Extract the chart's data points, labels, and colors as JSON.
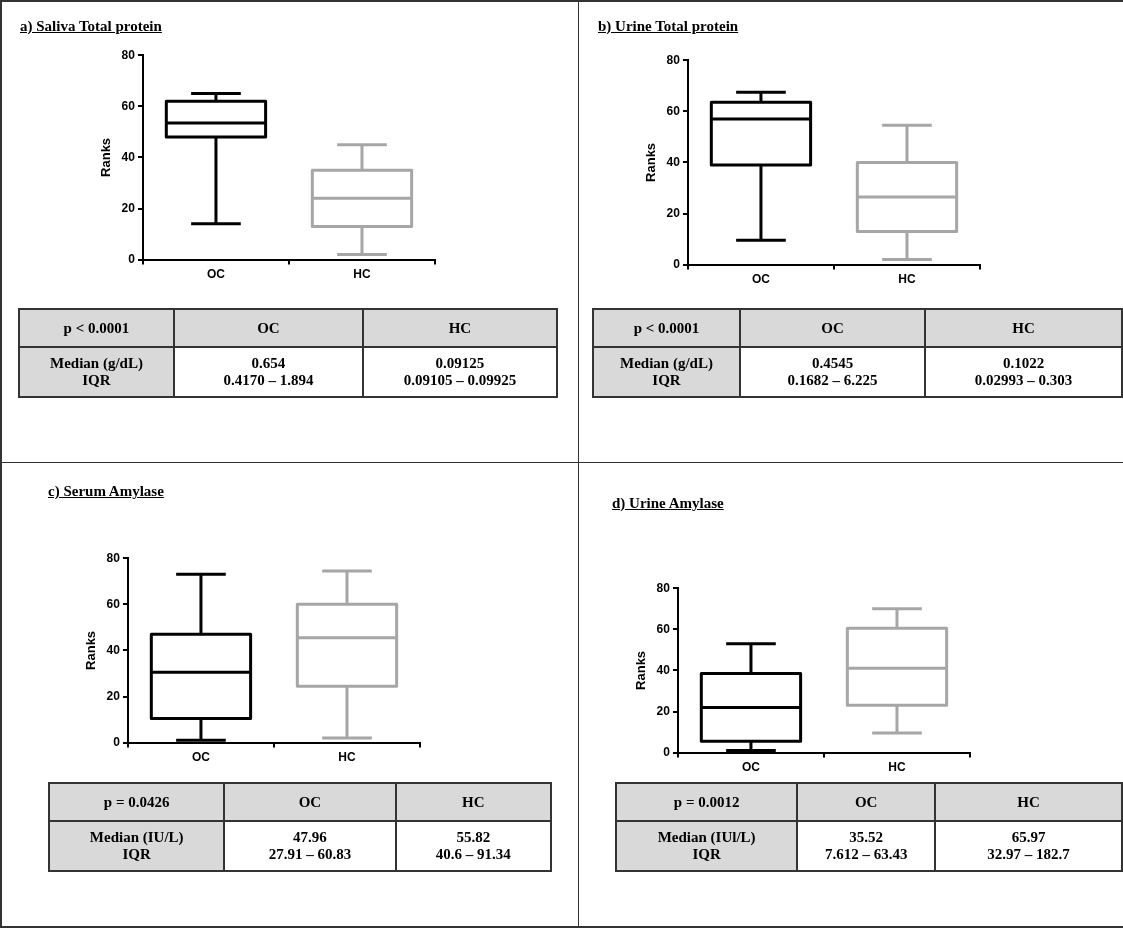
{
  "chart_data": [
    {
      "type": "box",
      "title": "a) Saliva Total protein",
      "categories": [
        "OC",
        "HC"
      ],
      "ylabel": "Ranks",
      "ylim": [
        0,
        80
      ],
      "yticks": [
        0,
        20,
        40,
        60,
        80
      ],
      "colors": [
        "#000000",
        "#a6a6a6"
      ],
      "boxes": [
        {
          "low": 14,
          "q1": 48,
          "median": 53.5,
          "q3": 62,
          "high": 65
        },
        {
          "low": 2,
          "q1": 13,
          "median": 24,
          "q3": 35,
          "high": 45
        }
      ],
      "annotations": [
        "p < 0.0001",
        "Median (g/dL)",
        "IQR",
        "0.654",
        "0.4170 – 1.894",
        "0.09125",
        "0.09105 – 0.09925"
      ]
    },
    {
      "type": "box",
      "title": "b) Urine Total protein",
      "categories": [
        "OC",
        "HC"
      ],
      "ylabel": "Ranks",
      "ylim": [
        0,
        80
      ],
      "yticks": [
        0,
        20,
        40,
        60,
        80
      ],
      "colors": [
        "#000000",
        "#a6a6a6"
      ],
      "boxes": [
        {
          "low": 9.5,
          "q1": 39,
          "median": 57,
          "q3": 63.5,
          "high": 67.5
        },
        {
          "low": 2,
          "q1": 13,
          "median": 26.5,
          "q3": 40,
          "high": 54.5
        }
      ],
      "annotations": [
        "p < 0.0001",
        "Median (g/dL)",
        "IQR",
        "0.4545",
        "0.1682 – 6.225",
        "0.1022",
        "0.02993 – 0.303"
      ]
    },
    {
      "type": "box",
      "title": "c) Serum Amylase",
      "categories": [
        "OC",
        "HC"
      ],
      "ylabel": "Ranks",
      "ylim": [
        0,
        80
      ],
      "yticks": [
        0,
        20,
        40,
        60,
        80
      ],
      "colors": [
        "#000000",
        "#a6a6a6"
      ],
      "boxes": [
        {
          "low": 1,
          "q1": 10.5,
          "median": 30.5,
          "q3": 47,
          "high": 73
        },
        {
          "low": 2,
          "q1": 24.5,
          "median": 45.5,
          "q3": 60,
          "high": 74.5
        }
      ],
      "annotations": [
        "p = 0.0426",
        "Median (IU/L)",
        "IQR",
        "47.96",
        "27.91 – 60.83",
        "55.82",
        "40.6 – 91.34"
      ]
    },
    {
      "type": "box",
      "title": "d)  Urine Amylase",
      "categories": [
        "OC",
        "HC"
      ],
      "ylabel": "Ranks",
      "ylim": [
        0,
        80
      ],
      "yticks": [
        0,
        20,
        40,
        60,
        80
      ],
      "colors": [
        "#000000",
        "#a6a6a6"
      ],
      "boxes": [
        {
          "low": 1,
          "q1": 5.5,
          "median": 22,
          "q3": 38.5,
          "high": 53
        },
        {
          "low": 9.5,
          "q1": 23,
          "median": 41,
          "q3": 60.5,
          "high": 70
        }
      ],
      "annotations": [
        "p =  0.0012",
        "Median (IUl/L)",
        "IQR",
        "35.52",
        "7.612 – 63.43",
        "65.97",
        "32.97 – 182.7"
      ]
    }
  ]
}
